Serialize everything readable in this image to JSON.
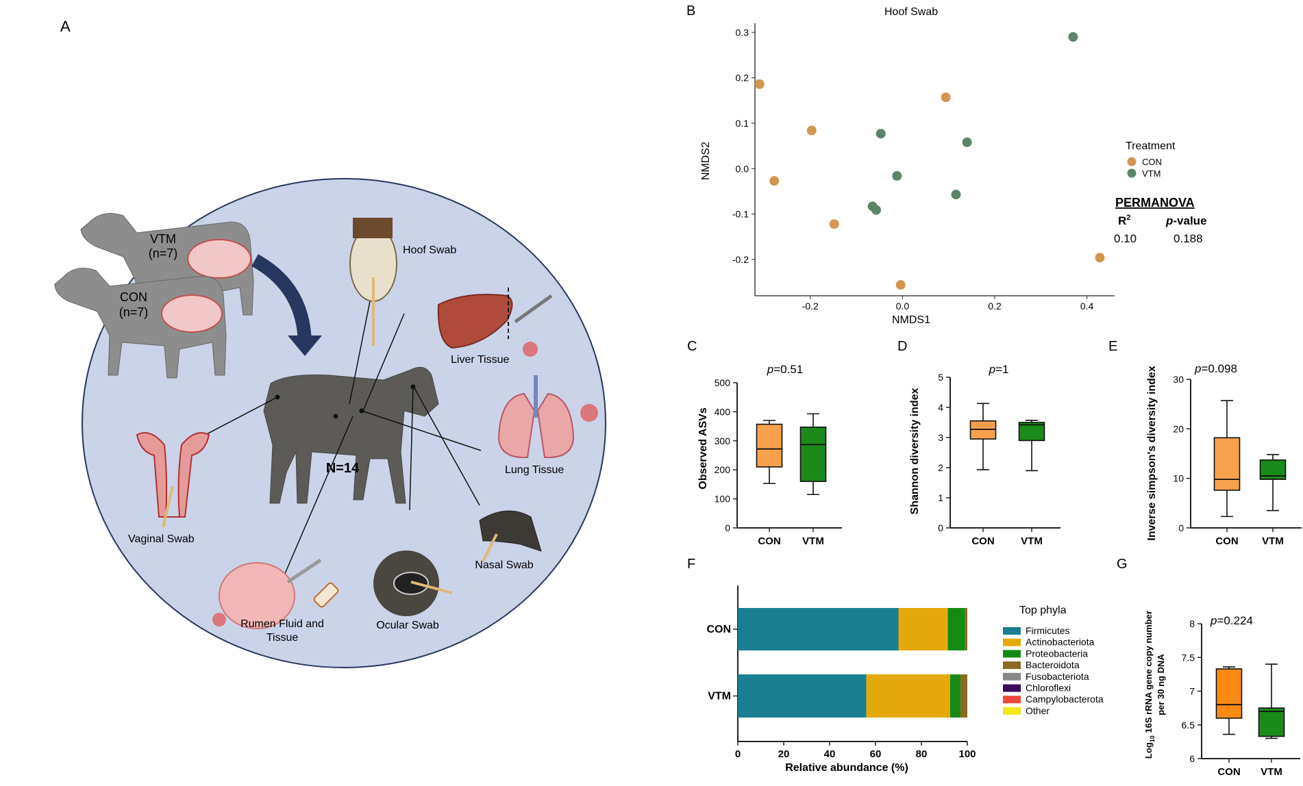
{
  "panel_a": {
    "label": "A",
    "dam_vtm": {
      "name": "VTM",
      "n": "(n=7)"
    },
    "dam_con": {
      "name": "CON",
      "n": "(n=7)"
    },
    "calf_n": "N=14",
    "sites": {
      "hoof": "Hoof Swab",
      "liver": "Liver Tissue",
      "lung": "Lung Tissue",
      "nasal": "Nasal Swab",
      "ocular": "Ocular Swab",
      "rumen_1": "Rumen Fluid and",
      "rumen_2": "Tissue",
      "vaginal": "Vaginal Swab"
    },
    "colors": {
      "circle": "#cbd3e8",
      "animal": "#8d8d8d",
      "calf": "#5d5b58",
      "arrow": "#27375f"
    }
  },
  "labels": {
    "b": "B",
    "c": "C",
    "d": "D",
    "e": "E",
    "f": "F",
    "g": "G"
  },
  "chart_data": [
    {
      "id": "B",
      "type": "scatter",
      "title": "Hoof Swab",
      "xlabel": "NMDS1",
      "ylabel": "NMDS2",
      "xlim": [
        -0.32,
        0.46
      ],
      "ylim": [
        -0.28,
        0.32
      ],
      "xticks": [
        -0.2,
        0.0,
        0.2,
        0.4
      ],
      "xtick_labels": [
        "-0.2",
        "0.0",
        "0.2",
        "0.4"
      ],
      "yticks": [
        -0.2,
        -0.1,
        0.0,
        0.1,
        0.2,
        0.3
      ],
      "ytick_labels": [
        "-0.2",
        "-0.1",
        "0.0",
        "0.1",
        "0.2",
        "0.3"
      ],
      "legend_title": "Treatment",
      "legend_placement": "right",
      "series": [
        {
          "name": "CON",
          "color": "#d4954e",
          "points": [
            [
              -0.31,
              0.186
            ],
            [
              -0.197,
              0.084
            ],
            [
              -0.278,
              -0.027
            ],
            [
              -0.148,
              -0.122
            ],
            [
              0.094,
              0.157
            ],
            [
              -0.004,
              -0.256
            ],
            [
              0.428,
              -0.196
            ]
          ]
        },
        {
          "name": "VTM",
          "color": "#5e8468",
          "points": [
            [
              0.37,
              0.29
            ],
            [
              -0.047,
              0.077
            ],
            [
              0.14,
              0.058
            ],
            [
              -0.012,
              -0.016
            ],
            [
              0.116,
              -0.057
            ],
            [
              -0.065,
              -0.083
            ],
            [
              -0.057,
              -0.091
            ]
          ]
        }
      ],
      "stats": {
        "heading": "PERMANOVA",
        "r2_label": "R",
        "r2_sup": "2",
        "p_label_italic": "p",
        "p_label_rest": "-value",
        "r2": "0.10",
        "p": "0.188"
      }
    },
    {
      "id": "C",
      "type": "box",
      "ylabel": "Observed ASVs",
      "ylim": [
        0,
        500
      ],
      "yticks": [
        0,
        100,
        200,
        300,
        400,
        500
      ],
      "ytick_labels": [
        "0",
        "100",
        "200",
        "300",
        "400",
        "500"
      ],
      "pvalue_italic": "p",
      "pvalue_rest": "=0.51",
      "categories": [
        "CON",
        "VTM"
      ],
      "boxes": [
        {
          "name": "CON",
          "color": "#f9a04e",
          "min": 153,
          "q1": 210,
          "median": 272,
          "q3": 357,
          "max": 370
        },
        {
          "name": "VTM",
          "color": "#1a8a1a",
          "min": 115,
          "q1": 160,
          "median": 287,
          "q3": 347,
          "max": 393
        }
      ]
    },
    {
      "id": "D",
      "type": "box",
      "ylabel": "Shannon diversity index",
      "ylim": [
        0,
        5
      ],
      "yticks": [
        0,
        1,
        2,
        3,
        4,
        5
      ],
      "ytick_labels": [
        "0",
        "1",
        "2",
        "3",
        "4",
        "5"
      ],
      "pvalue_italic": "p",
      "pvalue_rest": "=1",
      "categories": [
        "CON",
        "VTM"
      ],
      "boxes": [
        {
          "name": "CON",
          "color": "#f9a04e",
          "min": 1.93,
          "q1": 2.95,
          "median": 3.27,
          "q3": 3.55,
          "max": 4.13
        },
        {
          "name": "VTM",
          "color": "#1a8a1a",
          "min": 1.9,
          "q1": 2.9,
          "median": 3.42,
          "q3": 3.5,
          "max": 3.57
        }
      ]
    },
    {
      "id": "E",
      "type": "box",
      "ylabel": "Inverse simpson's diversity index",
      "ylim": [
        0,
        30
      ],
      "yticks": [
        0,
        10,
        20,
        30
      ],
      "ytick_labels": [
        "0",
        "10",
        "20",
        "30"
      ],
      "pvalue_italic": "p",
      "pvalue_rest": "=0.098",
      "categories": [
        "CON",
        "VTM"
      ],
      "boxes": [
        {
          "name": "CON",
          "color": "#f9a04e",
          "min": 2.3,
          "q1": 7.6,
          "median": 9.8,
          "q3": 18.2,
          "max": 25.7
        },
        {
          "name": "VTM",
          "color": "#1a8a1a",
          "min": 3.5,
          "q1": 9.8,
          "median": 10.5,
          "q3": 13.7,
          "max": 14.8
        }
      ]
    },
    {
      "id": "F",
      "type": "bar",
      "orientation": "horizontal",
      "stacked": true,
      "xlabel": "Relative abundance (%)",
      "xlim": [
        0,
        100
      ],
      "xticks": [
        0,
        20,
        40,
        60,
        80,
        100
      ],
      "xtick_labels": [
        "0",
        "20",
        "40",
        "60",
        "80",
        "100"
      ],
      "categories": [
        "CON",
        "VTM"
      ],
      "legend_title": "Top phyla",
      "legend_placement": "right",
      "series": [
        {
          "name": "Firmicutes",
          "color": "#1a7f93",
          "values": [
            70,
            56
          ]
        },
        {
          "name": "Actinobacteriota",
          "color": "#e6a90b",
          "values": [
            21.5,
            36.5
          ]
        },
        {
          "name": "Proteobacteria",
          "color": "#138a13",
          "values": [
            7.5,
            4.5
          ]
        },
        {
          "name": "Bacteroidota",
          "color": "#8a6b22",
          "values": [
            1,
            3
          ]
        },
        {
          "name": "Fusobacteriota",
          "color": "#888888",
          "values": [
            0,
            0
          ]
        },
        {
          "name": "Chloroflexi",
          "color": "#3b0a5c",
          "values": [
            0,
            0
          ]
        },
        {
          "name": "Campylobacterota",
          "color": "#f0463c",
          "values": [
            0,
            0
          ]
        },
        {
          "name": "Other",
          "color": "#f2e81a",
          "values": [
            0,
            0
          ]
        }
      ]
    },
    {
      "id": "G",
      "type": "box",
      "ylabel_prefix": "Log",
      "ylabel_sub": "10",
      "ylabel_rest": " 16S rRNA gene copy number",
      "ylabel_line2": "per 30 ng DNA",
      "ylim": [
        6,
        8
      ],
      "yticks": [
        6,
        6.5,
        7,
        7.5,
        8
      ],
      "ytick_labels": [
        "6",
        "6.5",
        "7",
        "7.5",
        "8"
      ],
      "pvalue_italic": "p",
      "pvalue_rest": "=0.224",
      "categories": [
        "CON",
        "VTM"
      ],
      "boxes": [
        {
          "name": "CON",
          "color": "#fb8a14",
          "min": 6.36,
          "q1": 6.6,
          "median": 6.8,
          "q3": 7.33,
          "max": 7.36
        },
        {
          "name": "VTM",
          "color": "#1a8a1a",
          "min": 6.3,
          "q1": 6.33,
          "median": 6.7,
          "q3": 6.75,
          "max": 7.4
        }
      ]
    }
  ]
}
